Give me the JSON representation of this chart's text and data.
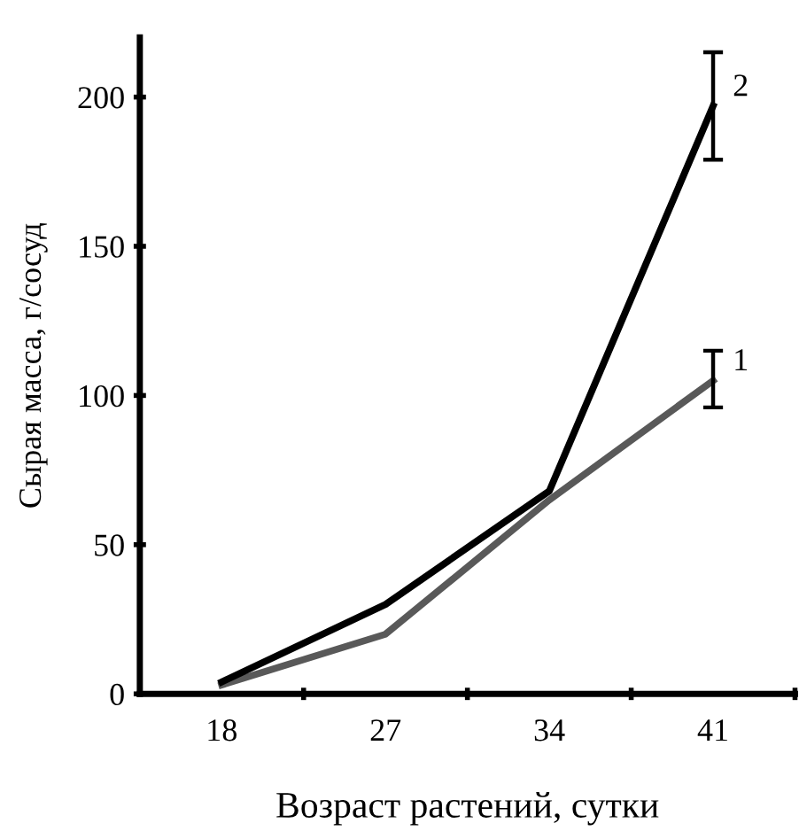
{
  "chart_data": {
    "type": "line",
    "xlabel": "Возраст растений, сутки",
    "ylabel": "Сырая масса, г/сосуд",
    "categories": [
      "18",
      "27",
      "34",
      "41"
    ],
    "series": [
      {
        "name": "1",
        "color": "#595959",
        "values": [
          3,
          20,
          65,
          105
        ],
        "errors": [
          null,
          null,
          null,
          [
            96,
            115
          ]
        ]
      },
      {
        "name": "2",
        "color": "#000000",
        "values": [
          4,
          30,
          68,
          197
        ],
        "errors": [
          null,
          null,
          null,
          [
            179,
            215
          ]
        ]
      }
    ],
    "ylim": [
      0,
      220
    ],
    "yticks": [
      0,
      50,
      100,
      150,
      200
    ],
    "grid": false,
    "legend": false,
    "line_style": "solid"
  }
}
